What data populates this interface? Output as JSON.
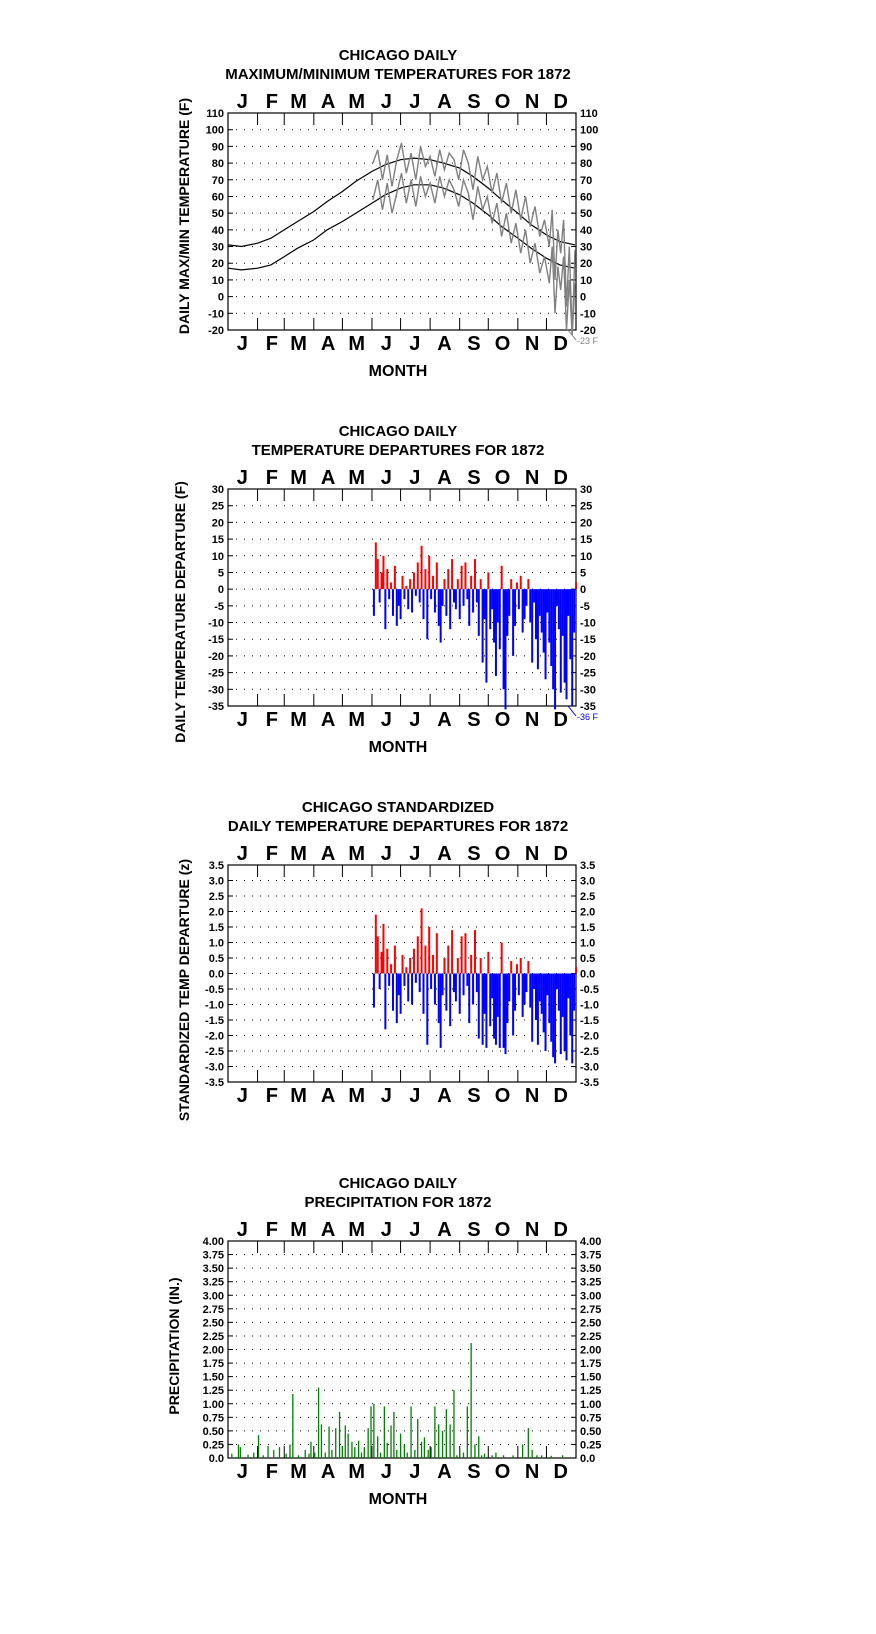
{
  "chart_data": [
    {
      "type": "line",
      "title": "CHICAGO DAILY",
      "subtitle": "MAXIMUM/MINIMUM TEMPERATURES FOR 1872",
      "xlabel": "MONTH",
      "ylabel": "DAILY MAX/MIN TEMPERATURE (F)",
      "months": [
        "J",
        "F",
        "M",
        "A",
        "M",
        "J",
        "J",
        "A",
        "S",
        "O",
        "N",
        "D"
      ],
      "ylim": [
        -20,
        110
      ],
      "yticks": [
        "110",
        "100",
        "90",
        "80",
        "70",
        "60",
        "50",
        "40",
        "30",
        "20",
        "10",
        "0",
        "-10",
        "-20"
      ],
      "annotation": "-23 F",
      "colors": {
        "normals": "#000000",
        "observed": "#808080"
      },
      "series": [
        {
          "days": [
            1,
            15,
            32,
            46,
            60,
            74,
            91,
            105,
            121,
            135,
            152,
            166,
            182,
            196,
            213,
            227,
            244,
            258,
            274,
            288,
            305,
            319,
            335,
            349,
            365
          ],
          "values": [
            31,
            30,
            32,
            35,
            40,
            45,
            51,
            57,
            63,
            69,
            75,
            79,
            82,
            83,
            82,
            80,
            77,
            72,
            65,
            58,
            50,
            43,
            37,
            33,
            31
          ]
        },
        {
          "days": [
            1,
            15,
            32,
            46,
            60,
            74,
            91,
            105,
            121,
            135,
            152,
            166,
            182,
            196,
            213,
            227,
            244,
            258,
            274,
            288,
            305,
            319,
            335,
            349,
            365
          ],
          "values": [
            17,
            16,
            17,
            19,
            24,
            29,
            34,
            40,
            45,
            50,
            56,
            61,
            65,
            67,
            67,
            65,
            61,
            56,
            49,
            42,
            35,
            29,
            23,
            19,
            17
          ]
        },
        {
          "days": [
            153,
            158,
            163,
            168,
            173,
            178,
            183,
            188,
            193,
            198,
            203,
            208,
            213,
            218,
            223,
            228,
            233,
            238,
            243,
            248,
            253,
            258,
            263,
            268,
            273,
            278,
            283,
            288,
            293,
            298,
            303,
            308,
            313,
            318,
            323,
            328,
            333,
            338,
            341,
            344,
            347,
            350,
            353,
            356,
            359,
            362,
            365
          ],
          "values": [
            80,
            88,
            70,
            85,
            66,
            82,
            92,
            74,
            86,
            70,
            90,
            78,
            84,
            72,
            88,
            76,
            86,
            82,
            70,
            88,
            80,
            64,
            84,
            70,
            78,
            62,
            74,
            56,
            68,
            50,
            64,
            46,
            60,
            42,
            54,
            36,
            46,
            30,
            52,
            10,
            40,
            26,
            46,
            -6,
            30,
            -23,
            28
          ]
        },
        {
          "days": [
            153,
            158,
            163,
            168,
            173,
            178,
            183,
            188,
            193,
            198,
            203,
            208,
            213,
            218,
            223,
            228,
            233,
            238,
            243,
            248,
            253,
            258,
            263,
            268,
            273,
            278,
            283,
            288,
            293,
            298,
            303,
            308,
            313,
            318,
            323,
            328,
            333,
            338,
            341,
            344,
            347,
            350,
            353,
            356,
            359,
            362,
            365
          ],
          "values": [
            58,
            70,
            52,
            68,
            50,
            62,
            74,
            56,
            70,
            54,
            72,
            60,
            68,
            56,
            72,
            60,
            70,
            64,
            54,
            70,
            62,
            46,
            66,
            52,
            60,
            44,
            56,
            36,
            50,
            32,
            44,
            26,
            40,
            20,
            32,
            14,
            24,
            8,
            30,
            -10,
            18,
            4,
            24,
            -20,
            10,
            -23,
            8
          ]
        }
      ]
    },
    {
      "type": "bar",
      "title": "CHICAGO DAILY",
      "subtitle": "TEMPERATURE DEPARTURES FOR 1872",
      "xlabel": "MONTH",
      "ylabel": "DAILY TEMPERATURE DEPARTURE (F)",
      "months": [
        "J",
        "F",
        "M",
        "A",
        "M",
        "J",
        "J",
        "A",
        "S",
        "O",
        "N",
        "D"
      ],
      "ylim": [
        -35,
        30
      ],
      "yticks": [
        "30",
        "25",
        "20",
        "15",
        "10",
        "5",
        "0",
        "-5",
        "-10",
        "-15",
        "-20",
        "-25",
        "-30",
        "-35"
      ],
      "annotation": "-36 F",
      "colors": {
        "positive": "#ff0000",
        "negative": "#0000ff"
      },
      "days": [
        153,
        155,
        157,
        159,
        161,
        163,
        165,
        167,
        169,
        171,
        173,
        175,
        177,
        179,
        181,
        183,
        185,
        187,
        189,
        191,
        193,
        195,
        197,
        199,
        201,
        203,
        205,
        207,
        209,
        211,
        213,
        215,
        217,
        219,
        221,
        223,
        225,
        227,
        229,
        231,
        233,
        235,
        237,
        239,
        241,
        243,
        245,
        247,
        249,
        251,
        253,
        255,
        257,
        259,
        261,
        263,
        265,
        267,
        269,
        271,
        273,
        275,
        277,
        279,
        281,
        283,
        285,
        287,
        289,
        291,
        293,
        295,
        297,
        299,
        301,
        303,
        305,
        307,
        309,
        311,
        313,
        315,
        317,
        319,
        321,
        323,
        325,
        327,
        329,
        331,
        333,
        335,
        337,
        339,
        341,
        343,
        345,
        347,
        349,
        351,
        353,
        355,
        357,
        359,
        361,
        363,
        365
      ],
      "values": [
        -8,
        14,
        9,
        -4,
        5,
        10,
        -12,
        6,
        -3,
        2,
        -8,
        7,
        -11,
        -5,
        -9,
        4,
        -3,
        1,
        -6,
        3,
        -7,
        5,
        -2,
        8,
        -4,
        13,
        -9,
        6,
        -15,
        10,
        -3,
        4,
        -7,
        8,
        -11,
        -16,
        -5,
        3,
        -8,
        6,
        -12,
        9,
        -4,
        -6,
        3,
        -9,
        7,
        -5,
        8,
        -3,
        -11,
        4,
        -7,
        9,
        -4,
        -14,
        3,
        -22,
        -9,
        -28,
        5,
        -12,
        -6,
        -16,
        -26,
        -10,
        -18,
        7,
        -30,
        -36,
        -14,
        -8,
        3,
        -20,
        -11,
        2,
        -6,
        4,
        -13,
        -9,
        -5,
        3,
        -10,
        -22,
        -4,
        -15,
        -24,
        -8,
        -13,
        -19,
        -27,
        -7,
        -16,
        -23,
        -30,
        -36,
        -5,
        -12,
        -31,
        -14,
        -28,
        -33,
        -8,
        -21,
        -35,
        -13,
        2
      ]
    },
    {
      "type": "bar",
      "title": "CHICAGO STANDARDIZED",
      "subtitle": "DAILY TEMPERATURE DEPARTURES FOR 1872",
      "xlabel": "",
      "ylabel": "STANDARDIZED TEMP DEPARTURE (z)",
      "months": [
        "J",
        "F",
        "M",
        "A",
        "M",
        "J",
        "J",
        "A",
        "S",
        "O",
        "N",
        "D"
      ],
      "ylim": [
        -3.5,
        3.5
      ],
      "yticks": [
        "3.5",
        "3.0",
        "2.5",
        "2.0",
        "1.5",
        "1.0",
        "0.5",
        "0.0",
        "-0.5",
        "-1.0",
        "-1.5",
        "-2.0",
        "-2.5",
        "-3.0",
        "-3.5"
      ],
      "colors": {
        "positive": "#ff0000",
        "negative": "#0000ff"
      },
      "days": [
        153,
        155,
        157,
        159,
        161,
        163,
        165,
        167,
        169,
        171,
        173,
        175,
        177,
        179,
        181,
        183,
        185,
        187,
        189,
        191,
        193,
        195,
        197,
        199,
        201,
        203,
        205,
        207,
        209,
        211,
        213,
        215,
        217,
        219,
        221,
        223,
        225,
        227,
        229,
        231,
        233,
        235,
        237,
        239,
        241,
        243,
        245,
        247,
        249,
        251,
        253,
        255,
        257,
        259,
        261,
        263,
        265,
        267,
        269,
        271,
        273,
        275,
        277,
        279,
        281,
        283,
        285,
        287,
        289,
        291,
        293,
        295,
        297,
        299,
        301,
        303,
        305,
        307,
        309,
        311,
        313,
        315,
        317,
        319,
        321,
        323,
        325,
        327,
        329,
        331,
        333,
        335,
        337,
        339,
        341,
        343,
        345,
        347,
        349,
        351,
        353,
        355,
        357,
        359,
        361,
        363,
        365
      ],
      "values": [
        -1.1,
        1.9,
        1.2,
        -0.5,
        0.7,
        1.6,
        -1.8,
        0.8,
        -0.4,
        0.3,
        -1.2,
        0.9,
        -1.6,
        -0.7,
        -1.3,
        0.6,
        -0.4,
        0.2,
        -0.9,
        0.5,
        -1.0,
        0.8,
        -0.3,
        1.2,
        -0.6,
        2.1,
        -1.3,
        0.9,
        -2.3,
        1.5,
        -0.5,
        0.6,
        -1.0,
        1.3,
        -1.6,
        -2.4,
        -0.7,
        0.5,
        -1.2,
        0.9,
        -1.7,
        1.4,
        -0.6,
        -0.9,
        0.5,
        -1.3,
        1.2,
        -0.7,
        1.3,
        -0.4,
        -1.6,
        0.6,
        -1.0,
        1.4,
        -0.6,
        -2.1,
        0.5,
        -2.3,
        -1.3,
        -2.4,
        0.7,
        -1.7,
        -0.8,
        -2.1,
        -2.3,
        -1.4,
        -2.4,
        1.0,
        -2.4,
        -2.6,
        -1.6,
        -0.9,
        0.4,
        -2.0,
        -1.2,
        0.3,
        -0.7,
        0.5,
        -1.4,
        -1.0,
        -0.6,
        0.4,
        -1.1,
        -2.2,
        -0.5,
        -1.5,
        -2.3,
        -0.9,
        -1.3,
        -1.9,
        -2.5,
        -0.7,
        -1.6,
        -2.2,
        -2.7,
        -2.9,
        -0.5,
        -1.2,
        -2.6,
        -1.4,
        -2.5,
        -2.8,
        -0.8,
        -2.0,
        -2.9,
        -1.2,
        0.2
      ]
    },
    {
      "type": "bar",
      "title": "CHICAGO DAILY",
      "subtitle": "PRECIPITATION FOR 1872",
      "xlabel": "MONTH",
      "ylabel": "PRECIPITATION (IN.)",
      "months": [
        "J",
        "F",
        "M",
        "A",
        "M",
        "J",
        "J",
        "A",
        "S",
        "O",
        "N",
        "D"
      ],
      "ylim": [
        0,
        4
      ],
      "yticks": [
        "4.00",
        "3.75",
        "3.50",
        "3.25",
        "3.00",
        "2.75",
        "2.50",
        "2.25",
        "2.00",
        "1.75",
        "1.50",
        "1.25",
        "1.00",
        "0.75",
        "0.50",
        "0.25",
        "0.0"
      ],
      "colors": {
        "bars": "#008000"
      },
      "days": [
        5,
        12,
        14,
        22,
        28,
        33,
        38,
        43,
        49,
        55,
        62,
        66,
        69,
        75,
        82,
        86,
        88,
        92,
        96,
        99,
        103,
        107,
        110,
        114,
        118,
        121,
        124,
        127,
        131,
        134,
        138,
        141,
        144,
        148,
        151,
        154,
        158,
        161,
        165,
        168,
        172,
        175,
        178,
        182,
        186,
        189,
        193,
        197,
        200,
        204,
        207,
        211,
        214,
        218,
        222,
        226,
        230,
        234,
        238,
        241,
        244,
        248,
        252,
        256,
        260,
        264,
        267,
        270,
        273,
        278,
        282,
        290,
        300,
        310,
        316,
        320,
        325,
        330,
        340,
        352
      ],
      "values": [
        0.08,
        0.25,
        0.2,
        0.06,
        0.1,
        0.42,
        0.05,
        0.22,
        0.15,
        0.2,
        0.08,
        0.25,
        1.18,
        0.05,
        0.15,
        0.08,
        0.3,
        0.1,
        1.3,
        0.62,
        0.1,
        0.58,
        0.15,
        0.55,
        0.85,
        0.22,
        0.6,
        0.45,
        0.3,
        0.2,
        0.32,
        0.1,
        0.2,
        0.55,
        0.95,
        1.0,
        0.4,
        0.1,
        0.95,
        0.28,
        0.6,
        0.85,
        0.15,
        0.45,
        0.25,
        0.1,
        0.95,
        0.15,
        0.72,
        0.3,
        0.38,
        0.15,
        0.2,
        0.95,
        0.62,
        0.5,
        0.9,
        0.62,
        1.25,
        0.05,
        0.18,
        0.1,
        0.95,
        2.12,
        0.25,
        0.4,
        0.05,
        0.08,
        0.02,
        0.05,
        0.1,
        0.05,
        0.05,
        0.25,
        0.55,
        0.15,
        0.05,
        0.05,
        0.04,
        0.05
      ]
    }
  ]
}
